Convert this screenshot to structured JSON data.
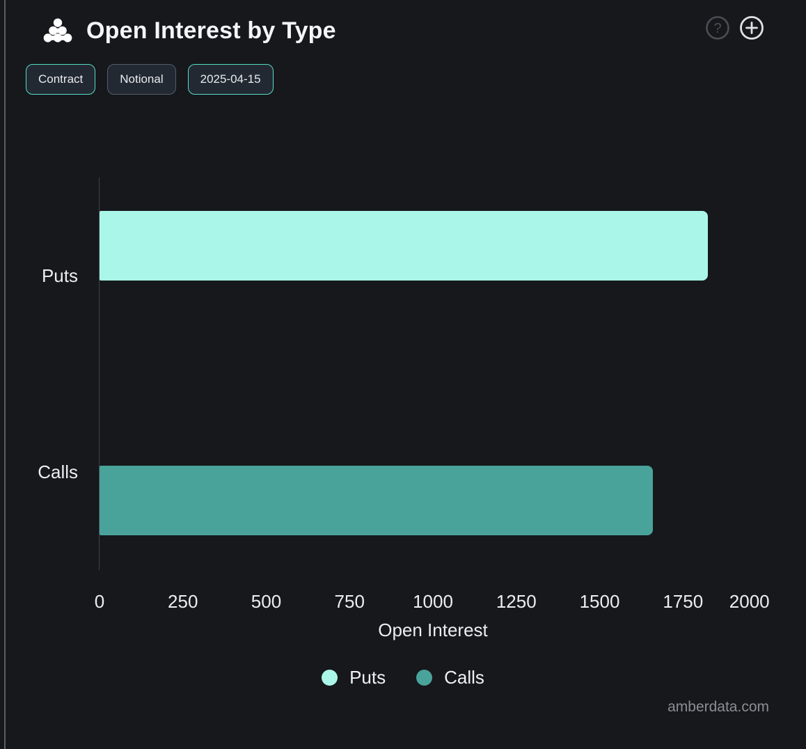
{
  "header": {
    "title": "Open Interest by Type",
    "logo_icon": "amberdata-dots-pyramid-icon",
    "help_icon": "question-mark-circle-icon",
    "add_icon": "plus-circle-icon"
  },
  "toolbar": {
    "buttons": [
      {
        "label": "Contract",
        "active": true
      },
      {
        "label": "Notional",
        "active": false
      },
      {
        "label": "2025-04-15",
        "active": true
      }
    ]
  },
  "chart_data": {
    "type": "bar",
    "orientation": "horizontal",
    "title": "Open Interest by Type",
    "categories": [
      "Puts",
      "Calls"
    ],
    "series": [
      {
        "name": "Puts",
        "value": 1825,
        "color": "#aaf7e9"
      },
      {
        "name": "Calls",
        "value": 1660,
        "color": "#4aa39b"
      }
    ],
    "xlabel": "Open Interest",
    "ylabel": "",
    "xlim": [
      0,
      2000
    ],
    "x_ticks": [
      0,
      250,
      500,
      750,
      1000,
      1250,
      1500,
      1750,
      2000
    ],
    "grid": false,
    "legend": [
      "Puts",
      "Calls"
    ],
    "legend_position": "bottom"
  },
  "colors": {
    "background": "#16181c",
    "puts": "#aaf7e9",
    "calls": "#4aa39b",
    "active_border": "#57dcc6",
    "axis_line": "#3f444b",
    "text": "#eceef0"
  },
  "footer": {
    "watermark": "amberdata.com"
  }
}
